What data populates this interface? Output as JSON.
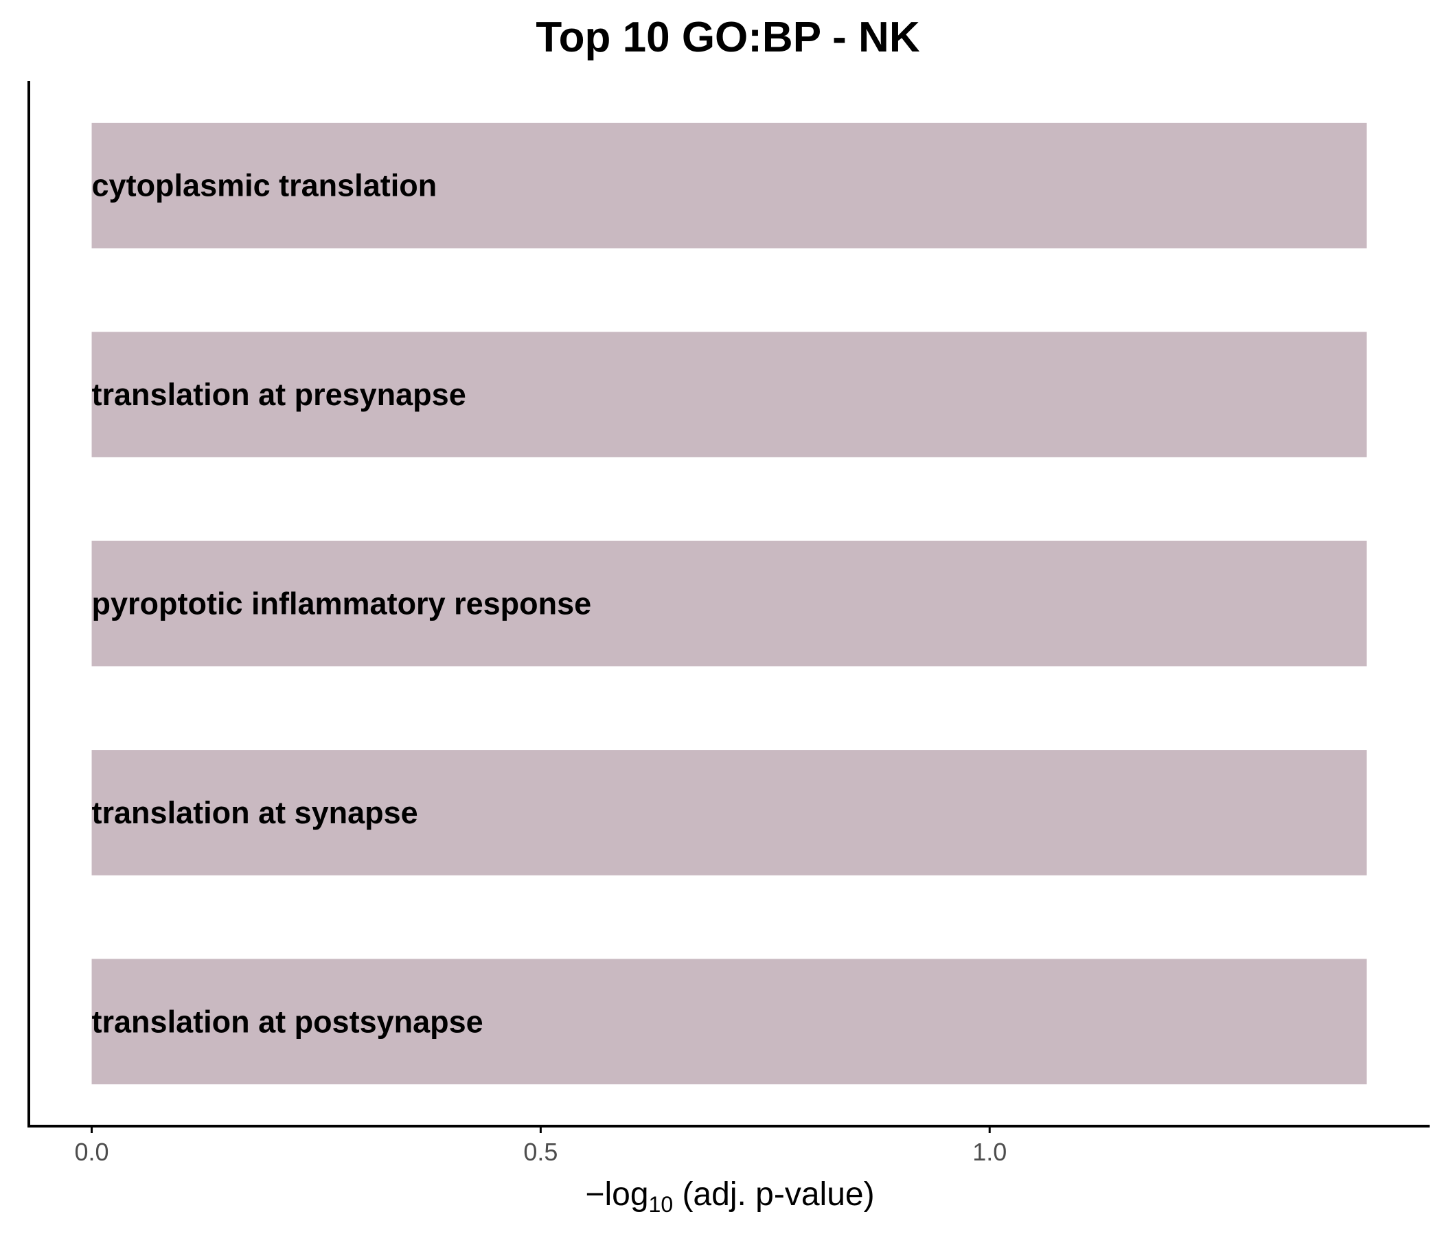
{
  "chart_data": {
    "type": "bar",
    "orientation": "horizontal",
    "title": "Top 10 GO:BP - NK",
    "categories": [
      "cytoplasmic translation",
      "translation at presynapse",
      "pyroptotic inflammatory response",
      "translation at synapse",
      "translation at postsynapse"
    ],
    "values": [
      1.42,
      1.42,
      1.42,
      1.42,
      1.42
    ],
    "xlabel": {
      "prefix": "−log",
      "subscript": "10",
      "suffix": " (adj. p-value)"
    },
    "ylabel": "",
    "xlim": [
      -0.07,
      1.49
    ],
    "x_ticks": [
      {
        "value": 0.0,
        "label": "0.0"
      },
      {
        "value": 0.5,
        "label": "0.5"
      },
      {
        "value": 1.0,
        "label": "1.0"
      }
    ],
    "grid": false,
    "legend": "none",
    "bar_color": "#c9b9c1",
    "axis_color": "#000000",
    "tick_label_color": "#4d4d4d"
  }
}
